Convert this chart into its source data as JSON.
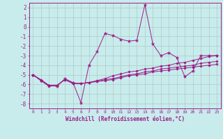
{
  "xlabel": "Windchill (Refroidissement éolien,°C)",
  "x": [
    0,
    1,
    2,
    3,
    4,
    5,
    6,
    7,
    8,
    9,
    10,
    11,
    12,
    13,
    14,
    15,
    16,
    17,
    18,
    19,
    20,
    21,
    22,
    23
  ],
  "line1": [
    -5.0,
    -5.6,
    -6.1,
    -6.2,
    -5.4,
    -5.8,
    -7.9,
    -4.0,
    -2.6,
    -0.7,
    -0.9,
    -1.3,
    -1.5,
    -1.4,
    2.3,
    -1.8,
    -3.0,
    -2.7,
    -3.2,
    -5.2,
    -4.6,
    -3.0,
    -3.0,
    -3.0
  ],
  "line2": [
    -5.0,
    -5.5,
    -6.1,
    -6.1,
    -5.5,
    -5.9,
    -5.9,
    -5.8,
    -5.6,
    -5.4,
    -5.1,
    -4.9,
    -4.7,
    -4.6,
    -4.4,
    -4.3,
    -4.1,
    -4.0,
    -3.8,
    -3.7,
    -3.5,
    -3.3,
    -3.1,
    -3.0
  ],
  "line3": [
    -5.0,
    -5.6,
    -6.1,
    -6.1,
    -5.5,
    -5.9,
    -5.9,
    -5.8,
    -5.7,
    -5.5,
    -5.4,
    -5.2,
    -5.0,
    -4.9,
    -4.7,
    -4.6,
    -4.4,
    -4.3,
    -4.2,
    -4.1,
    -4.0,
    -3.8,
    -3.7,
    -3.6
  ],
  "line4": [
    -5.0,
    -5.6,
    -6.2,
    -6.1,
    -5.5,
    -5.9,
    -5.9,
    -5.8,
    -5.7,
    -5.6,
    -5.5,
    -5.3,
    -5.1,
    -5.0,
    -4.9,
    -4.7,
    -4.6,
    -4.5,
    -4.4,
    -4.3,
    -4.2,
    -4.1,
    -4.0,
    -3.9
  ],
  "line_color": "#9b1d8a",
  "bg_color": "#c8ecec",
  "grid_color": "#b0c8c8",
  "ylim": [
    -8.5,
    2.5
  ],
  "yticks": [
    -8,
    -7,
    -6,
    -5,
    -4,
    -3,
    -2,
    -1,
    0,
    1,
    2
  ],
  "xlim": [
    -0.5,
    23.5
  ],
  "xtick_fontsize": 4.5,
  "ytick_fontsize": 5.5,
  "xlabel_fontsize": 5.5
}
